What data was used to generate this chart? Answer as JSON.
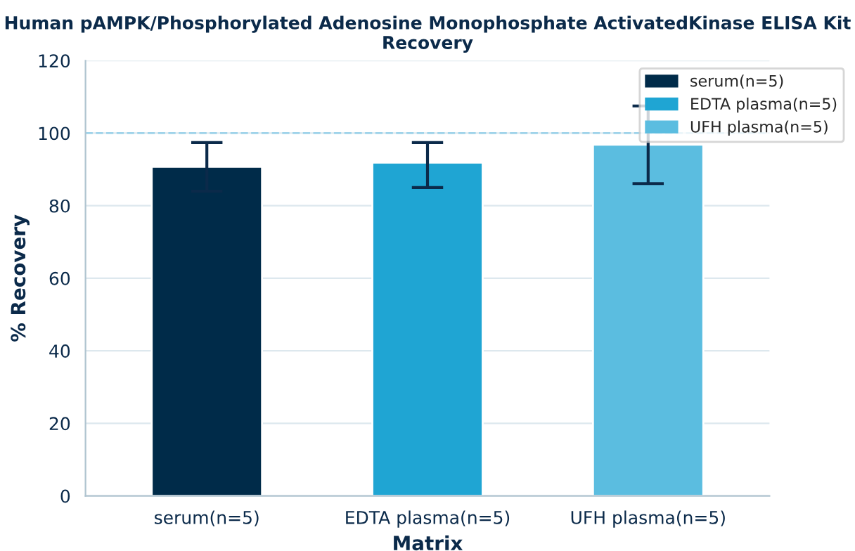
{
  "chart_data": {
    "type": "bar",
    "title": "Human pAMPK/Phosphorylated Adenosine Monophosphate ActivatedKinase ELISA Kit\nRecovery",
    "xlabel": "Matrix",
    "ylabel": "% Recovery",
    "categories": [
      "serum(n=5)",
      "EDTA plasma(n=5)",
      "UFH plasma(n=5)"
    ],
    "series": [
      {
        "name": "serum(n=5)",
        "color": "#002b49",
        "values": [
          90.7,
          null,
          null
        ],
        "errors": [
          6.7,
          null,
          null
        ]
      },
      {
        "name": "EDTA plasma(n=5)",
        "color": "#1fa5d3",
        "values": [
          null,
          91.9,
          null
        ],
        "errors": [
          null,
          [
            85.0,
            97.4
          ],
          null
        ]
      },
      {
        "name": "UFH plasma(n=5)",
        "color": "#5bbde0",
        "values": [
          null,
          null,
          96.8
        ],
        "errors": [
          null,
          null,
          10.7
        ]
      }
    ],
    "ylim": [
      0,
      120
    ],
    "yticks": [
      0,
      20,
      40,
      60,
      80,
      100,
      120
    ],
    "grid": "y",
    "legend": "top right",
    "ref_lines": [
      {
        "axis": "y",
        "value": 100,
        "color": "#9fd3ea",
        "line_style": "dashed"
      }
    ]
  }
}
